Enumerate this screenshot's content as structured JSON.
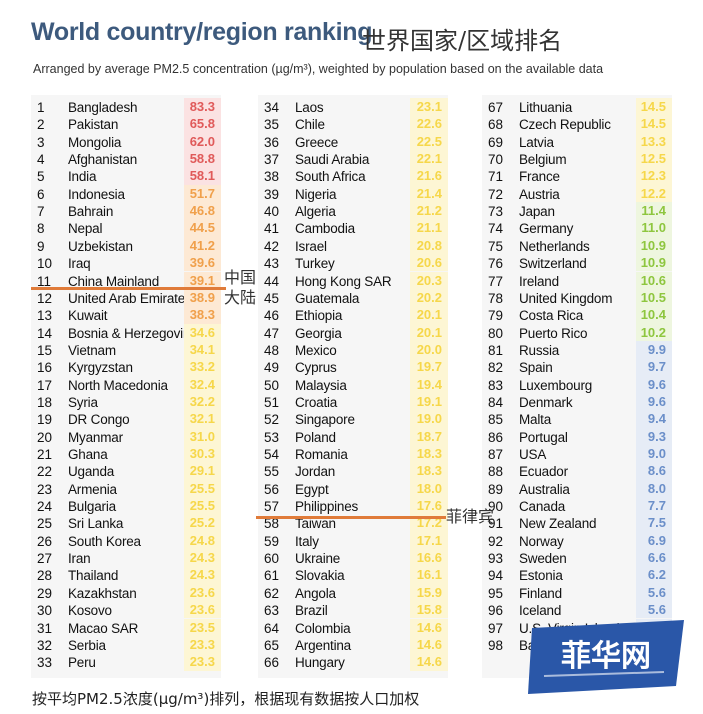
{
  "header": {
    "title": "World country/region ranking",
    "title_cn": "世界国家/区域排名",
    "subtitle": "Arranged by average PM2.5 concentration (µg/m³), weighted by population based on the available data"
  },
  "annotations": {
    "china_label": "中国\n大陆",
    "philippines_label": "菲律宾"
  },
  "footer": {
    "note": "按平均PM2.5浓度(µg/m³)排列，根据现有数据按人口加权"
  },
  "logo": {
    "text": "菲华网"
  },
  "colors": {
    "red": "#e05a5a",
    "orange": "#f0a04b",
    "yellow": "#f6d74a",
    "green": "#8ec63f",
    "blue": "#6b8fc9",
    "highlight": "#e07b39"
  },
  "chart_data": {
    "type": "table",
    "columns": [
      "rank",
      "country",
      "pm25"
    ],
    "rows": [
      [
        1,
        "Bangladesh",
        83.3
      ],
      [
        2,
        "Pakistan",
        65.8
      ],
      [
        3,
        "Mongolia",
        62.0
      ],
      [
        4,
        "Afghanistan",
        58.8
      ],
      [
        5,
        "India",
        58.1
      ],
      [
        6,
        "Indonesia",
        51.7
      ],
      [
        7,
        "Bahrain",
        46.8
      ],
      [
        8,
        "Nepal",
        44.5
      ],
      [
        9,
        "Uzbekistan",
        41.2
      ],
      [
        10,
        "Iraq",
        39.6
      ],
      [
        11,
        "China Mainland",
        39.1
      ],
      [
        12,
        "United Arab Emirates",
        38.9
      ],
      [
        13,
        "Kuwait",
        38.3
      ],
      [
        14,
        "Bosnia & Herzegovina",
        34.6
      ],
      [
        15,
        "Vietnam",
        34.1
      ],
      [
        16,
        "Kyrgyzstan",
        33.2
      ],
      [
        17,
        "North Macedonia",
        32.4
      ],
      [
        18,
        "Syria",
        32.2
      ],
      [
        19,
        "DR Congo",
        32.1
      ],
      [
        20,
        "Myanmar",
        31.0
      ],
      [
        21,
        "Ghana",
        30.3
      ],
      [
        22,
        "Uganda",
        29.1
      ],
      [
        23,
        "Armenia",
        25.5
      ],
      [
        24,
        "Bulgaria",
        25.5
      ],
      [
        25,
        "Sri Lanka",
        25.2
      ],
      [
        26,
        "South Korea",
        24.8
      ],
      [
        27,
        "Iran",
        24.3
      ],
      [
        28,
        "Thailand",
        24.3
      ],
      [
        29,
        "Kazakhstan",
        23.6
      ],
      [
        30,
        "Kosovo",
        23.6
      ],
      [
        31,
        "Macao SAR",
        23.5
      ],
      [
        32,
        "Serbia",
        23.3
      ],
      [
        33,
        "Peru",
        23.3
      ],
      [
        34,
        "Laos",
        23.1
      ],
      [
        35,
        "Chile",
        22.6
      ],
      [
        36,
        "Greece",
        22.5
      ],
      [
        37,
        "Saudi Arabia",
        22.1
      ],
      [
        38,
        "South Africa",
        21.6
      ],
      [
        39,
        "Nigeria",
        21.4
      ],
      [
        40,
        "Algeria",
        21.2
      ],
      [
        41,
        "Cambodia",
        21.1
      ],
      [
        42,
        "Israel",
        20.8
      ],
      [
        43,
        "Turkey",
        20.6
      ],
      [
        44,
        "Hong Kong SAR",
        20.3
      ],
      [
        45,
        "Guatemala",
        20.2
      ],
      [
        46,
        "Ethiopia",
        20.1
      ],
      [
        47,
        "Georgia",
        20.1
      ],
      [
        48,
        "Mexico",
        20.0
      ],
      [
        49,
        "Cyprus",
        19.7
      ],
      [
        50,
        "Malaysia",
        19.4
      ],
      [
        51,
        "Croatia",
        19.1
      ],
      [
        52,
        "Singapore",
        19.0
      ],
      [
        53,
        "Poland",
        18.7
      ],
      [
        54,
        "Romania",
        18.3
      ],
      [
        55,
        "Jordan",
        18.3
      ],
      [
        56,
        "Egypt",
        18.0
      ],
      [
        57,
        "Philippines",
        17.6
      ],
      [
        58,
        "Taiwan",
        17.2
      ],
      [
        59,
        "Italy",
        17.1
      ],
      [
        60,
        "Ukraine",
        16.6
      ],
      [
        61,
        "Slovakia",
        16.1
      ],
      [
        62,
        "Angola",
        15.9
      ],
      [
        63,
        "Brazil",
        15.8
      ],
      [
        64,
        "Colombia",
        14.6
      ],
      [
        65,
        "Argentina",
        14.6
      ],
      [
        66,
        "Hungary",
        14.6
      ],
      [
        67,
        "Lithuania",
        14.5
      ],
      [
        68,
        "Czech Republic",
        14.5
      ],
      [
        69,
        "Latvia",
        13.3
      ],
      [
        70,
        "Belgium",
        12.5
      ],
      [
        71,
        "France",
        12.3
      ],
      [
        72,
        "Austria",
        12.2
      ],
      [
        73,
        "Japan",
        11.4
      ],
      [
        74,
        "Germany",
        11.0
      ],
      [
        75,
        "Netherlands",
        10.9
      ],
      [
        76,
        "Switzerland",
        10.9
      ],
      [
        77,
        "Ireland",
        10.6
      ],
      [
        78,
        "United Kingdom",
        10.5
      ],
      [
        79,
        "Costa Rica",
        10.4
      ],
      [
        80,
        "Puerto Rico",
        10.2
      ],
      [
        81,
        "Russia",
        9.9
      ],
      [
        82,
        "Spain",
        9.7
      ],
      [
        83,
        "Luxembourg",
        9.6
      ],
      [
        84,
        "Denmark",
        9.6
      ],
      [
        85,
        "Malta",
        9.4
      ],
      [
        86,
        "Portugal",
        9.3
      ],
      [
        87,
        "USA",
        9.0
      ],
      [
        88,
        "Ecuador",
        8.6
      ],
      [
        89,
        "Australia",
        8.0
      ],
      [
        90,
        "Canada",
        7.7
      ],
      [
        91,
        "New Zealand",
        7.5
      ],
      [
        92,
        "Norway",
        6.9
      ],
      [
        93,
        "Sweden",
        6.6
      ],
      [
        94,
        "Estonia",
        6.2
      ],
      [
        95,
        "Finland",
        5.6
      ],
      [
        96,
        "Iceland",
        5.6
      ],
      [
        97,
        "U.S. Virgin Islands",
        3.5
      ],
      [
        98,
        "Ba",
        ""
      ]
    ]
  }
}
